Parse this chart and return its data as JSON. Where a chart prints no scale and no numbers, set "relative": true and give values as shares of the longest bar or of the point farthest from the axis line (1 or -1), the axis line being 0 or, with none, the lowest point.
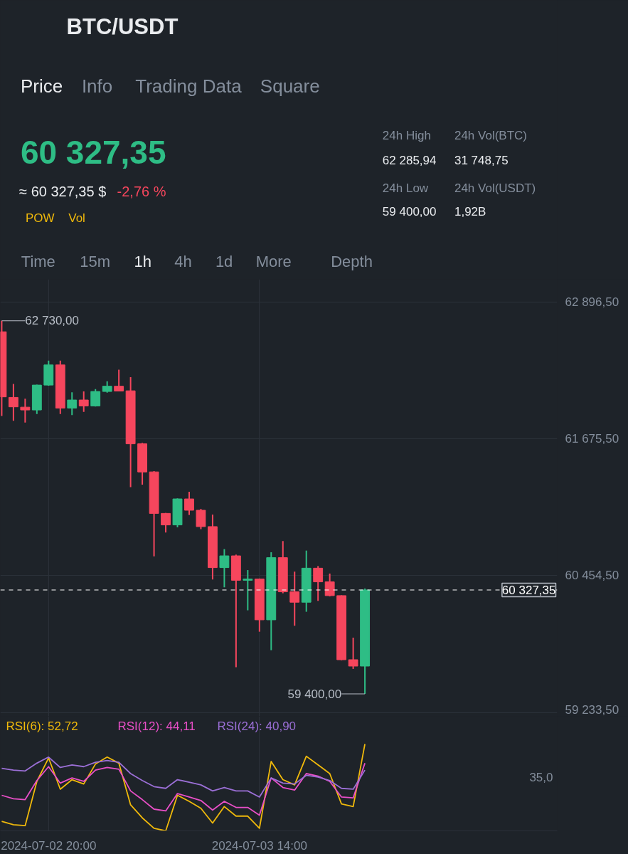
{
  "chart_data": [
    {
      "type": "other",
      "title": "BTC/USDT",
      "annotations": [
        "Price",
        "Info",
        "Trading Data",
        "Square",
        "60 327,35",
        "≈ 60 327,35 $",
        "-2,76 %",
        "24h High",
        "62 285,94",
        "24h Vol(BTC)",
        "31 748,75",
        "24h Low",
        "59 400,00",
        "24h Vol(USDT)",
        "1,92B",
        "POW",
        "Vol",
        "Time",
        "15m",
        "1h",
        "4h",
        "1d",
        "More",
        "Depth"
      ]
    },
    {
      "type": "candlestick",
      "x": [
        "2024-07-02T16:00",
        "2024-07-02T17:00",
        "2024-07-02T18:00",
        "2024-07-02T19:00",
        "2024-07-02T20:00",
        "2024-07-02T21:00",
        "2024-07-02T22:00",
        "2024-07-02T23:00",
        "2024-07-03T00:00",
        "2024-07-03T01:00",
        "2024-07-03T02:00",
        "2024-07-03T03:00",
        "2024-07-03T04:00",
        "2024-07-03T05:00",
        "2024-07-03T06:00",
        "2024-07-03T07:00",
        "2024-07-03T08:00",
        "2024-07-03T09:00",
        "2024-07-03T10:00",
        "2024-07-03T11:00",
        "2024-07-03T12:00",
        "2024-07-03T13:00",
        "2024-07-03T14:00",
        "2024-07-03T15:00",
        "2024-07-03T16:00",
        "2024-07-03T17:00",
        "2024-07-03T18:00",
        "2024-07-03T19:00",
        "2024-07-03T20:00",
        "2024-07-03T21:00",
        "2024-07-03T22:00",
        "2024-07-03T23:00"
      ],
      "ohlc": [
        [
          62632,
          62730,
          61881,
          62051
        ],
        [
          62046,
          62167,
          61838,
          61962
        ],
        [
          61959,
          62035,
          61822,
          61934
        ],
        [
          61934,
          62160,
          61898,
          62156
        ],
        [
          62156,
          62374,
          62150,
          62336
        ],
        [
          62336,
          62374,
          61898,
          61951
        ],
        [
          61951,
          62092,
          61889,
          62023
        ],
        [
          62023,
          62099,
          61917,
          61970
        ],
        [
          61970,
          62120,
          61965,
          62099
        ],
        [
          62099,
          62190,
          62089,
          62146
        ],
        [
          62146,
          62294,
          62100,
          62103
        ],
        [
          62105,
          62226,
          61246,
          61632
        ],
        [
          61632,
          61640,
          61267,
          61381
        ],
        [
          61381,
          61388,
          60628,
          61011
        ],
        [
          61011,
          61015,
          60840,
          60908
        ],
        [
          60908,
          61145,
          60886,
          61140
        ],
        [
          61140,
          61204,
          60997,
          61039
        ],
        [
          61039,
          61051,
          60870,
          60893
        ],
        [
          60893,
          61000,
          60421,
          60527
        ],
        [
          60527,
          60692,
          60351,
          60632
        ],
        [
          60632,
          60643,
          59638,
          60414
        ],
        [
          60414,
          60505,
          60146,
          60425
        ],
        [
          60425,
          60430,
          59955,
          60061
        ],
        [
          60061,
          60664,
          59790,
          60616
        ],
        [
          60616,
          60764,
          60298,
          60311
        ],
        [
          60311,
          60491,
          60008,
          60218
        ],
        [
          60218,
          60679,
          60133,
          60522
        ],
        [
          60522,
          60541,
          60230,
          60400
        ],
        [
          60400,
          60474,
          60270,
          60277
        ],
        [
          60277,
          60280,
          59700,
          59705
        ],
        [
          59705,
          59902,
          59623,
          59648
        ],
        [
          59648,
          60340,
          59400,
          60327.35
        ]
      ],
      "colors": [
        "#f6465d",
        "#f6465d",
        "#f6465d",
        "#2ebd85",
        "#2ebd85",
        "#f6465d",
        "#2ebd85",
        "#f6465d",
        "#2ebd85",
        "#2ebd85",
        "#f6465d",
        "#f6465d",
        "#f6465d",
        "#f6465d",
        "#f6465d",
        "#2ebd85",
        "#f6465d",
        "#f6465d",
        "#f6465d",
        "#2ebd85",
        "#f6465d",
        "#2ebd85",
        "#f6465d",
        "#2ebd85",
        "#f6465d",
        "#f6465d",
        "#2ebd85",
        "#f6465d",
        "#f6465d",
        "#f6465d",
        "#f6465d",
        "#2ebd85"
      ],
      "xlim": [
        "2024-07-02T15:53",
        "2024-07-04T15:25"
      ],
      "xticks": [
        {
          "value": "2024-07-02T20:00",
          "label": null
        },
        {
          "value": "2024-07-03T14:00",
          "label": null
        }
      ],
      "ylim": [
        59200,
        63100
      ],
      "yticks": [
        {
          "value": 59233.5,
          "label": "59 233,50"
        },
        {
          "value": 60454.5,
          "label": "60 454,50"
        },
        {
          "value": 61675.5,
          "label": "61 675,50"
        },
        {
          "value": 62896.5,
          "label": "62 896,50"
        }
      ],
      "tick_labels": "y",
      "grid": true,
      "ref_lines": [
        {
          "axis": "y",
          "value": 60327.35,
          "label": "60 327,35",
          "color": "#ffffff",
          "line_style": "dashed"
        }
      ],
      "annotations": [
        {
          "text": "62 730,00",
          "x": "2024-07-02T16:00",
          "y": 62730
        },
        {
          "text": "59 400,00",
          "x": "2024-07-03T23:00",
          "y": 59400
        }
      ]
    },
    {
      "type": "line",
      "relative": true,
      "tick_labels": "x",
      "grid": "x",
      "x": [
        "2024-07-02T16:00",
        "2024-07-02T17:00",
        "2024-07-02T18:00",
        "2024-07-02T19:00",
        "2024-07-02T20:00",
        "2024-07-02T21:00",
        "2024-07-02T22:00",
        "2024-07-02T23:00",
        "2024-07-03T00:00",
        "2024-07-03T01:00",
        "2024-07-03T02:00",
        "2024-07-03T03:00",
        "2024-07-03T04:00",
        "2024-07-03T05:00",
        "2024-07-03T06:00",
        "2024-07-03T07:00",
        "2024-07-03T08:00",
        "2024-07-03T09:00",
        "2024-07-03T10:00",
        "2024-07-03T11:00",
        "2024-07-03T12:00",
        "2024-07-03T13:00",
        "2024-07-03T14:00",
        "2024-07-03T15:00",
        "2024-07-03T16:00",
        "2024-07-03T17:00",
        "2024-07-03T18:00",
        "2024-07-03T19:00",
        "2024-07-03T20:00",
        "2024-07-03T21:00",
        "2024-07-03T22:00",
        "2024-07-03T23:00"
      ],
      "xlim": [
        "2024-07-02T15:53",
        "2024-07-04T15:25"
      ],
      "xticks": [
        {
          "value": "2024-07-02T20:00",
          "label": "2024-07-02 20:00"
        },
        {
          "value": "2024-07-03T14:00",
          "label": "2024-07-03 14:00"
        }
      ],
      "series": [
        {
          "name": "RSI(6): 52,72",
          "color": "#f0b90b",
          "values": [
            0.11,
            0.07,
            0.06,
            0.57,
            0.84,
            0.48,
            0.59,
            0.54,
            0.77,
            0.85,
            0.78,
            0.3,
            0.15,
            0.03,
            0,
            0.41,
            0.34,
            0.26,
            0.09,
            0.28,
            0.17,
            0.17,
            0.03,
            0.8,
            0.59,
            0.53,
            0.86,
            0.76,
            0.66,
            0.31,
            0.28,
            1
          ]
        },
        {
          "name": "RSI(12): 44,11",
          "color": "#e84fc7",
          "values": [
            0.41,
            0.37,
            0.36,
            0.58,
            0.74,
            0.55,
            0.61,
            0.57,
            0.7,
            0.73,
            0.71,
            0.46,
            0.36,
            0.25,
            0.23,
            0.43,
            0.39,
            0.35,
            0.24,
            0.34,
            0.27,
            0.27,
            0.18,
            0.61,
            0.5,
            0.47,
            0.66,
            0.63,
            0.57,
            0.39,
            0.38,
            0.78
          ]
        },
        {
          "name": "RSI(24): 40,90",
          "color": "#9b6fd6",
          "values": [
            0.72,
            0.7,
            0.69,
            0.78,
            0.85,
            0.73,
            0.76,
            0.74,
            0.79,
            0.81,
            0.79,
            0.66,
            0.58,
            0.51,
            0.49,
            0.59,
            0.56,
            0.53,
            0.46,
            0.5,
            0.46,
            0.46,
            0.39,
            0.61,
            0.55,
            0.54,
            0.64,
            0.62,
            0.58,
            0.49,
            0.48,
            0.7
          ]
        }
      ],
      "annotations": [
        "35,0"
      ]
    }
  ]
}
